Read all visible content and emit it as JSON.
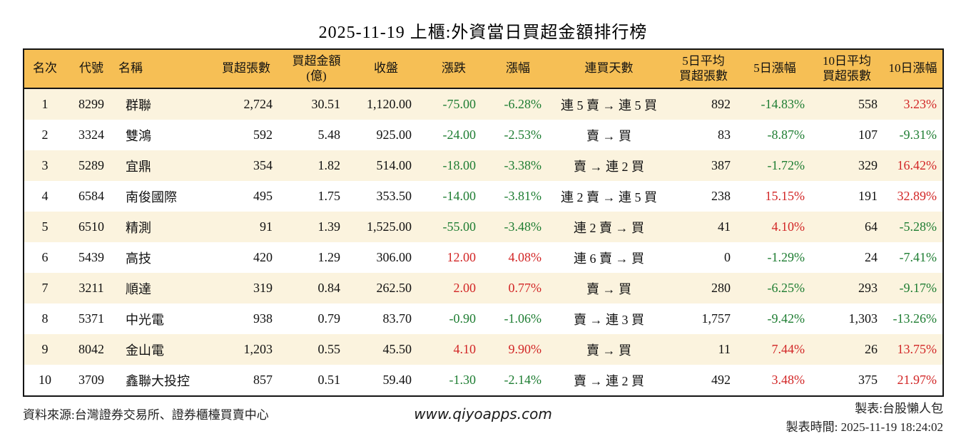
{
  "title": "2025-11-19 上櫃:外資當日買超金額排行榜",
  "colors": {
    "header_bg": "#f6bf55",
    "stripe_bg": "#fbf3de",
    "border": "#141414",
    "up_red": "#d22626",
    "down_green": "#1e7d32"
  },
  "chart_data": {
    "type": "table",
    "title": "2025-11-19 上櫃:外資當日買超金額排行榜",
    "columns": [
      "名次",
      "代號",
      "名稱",
      "買超張數",
      "買超金額\n(億)",
      "收盤",
      "漲跌",
      "漲幅",
      "連買天數",
      "5日平均\n買超張數",
      "5日漲幅",
      "10日平均\n買超張數",
      "10日漲幅"
    ],
    "column_keys": [
      "rank",
      "code",
      "name",
      "net_buy_volume",
      "net_buy_amount",
      "close",
      "change",
      "change_pct",
      "streak",
      "avg5_volume",
      "pct5",
      "avg10_volume",
      "pct10"
    ],
    "signed_columns": [
      "change",
      "change_pct",
      "pct5",
      "pct10"
    ],
    "rows": [
      {
        "rank": "1",
        "code": "8299",
        "name": "群聯",
        "net_buy_volume": "2,724",
        "net_buy_amount": "30.51",
        "close": "1,120.00",
        "change": "-75.00",
        "change_pct": "-6.28%",
        "streak": "連 5 賣 → 連 5 買",
        "avg5_volume": "892",
        "pct5": "-14.83%",
        "avg10_volume": "558",
        "pct10": "3.23%"
      },
      {
        "rank": "2",
        "code": "3324",
        "name": "雙鴻",
        "net_buy_volume": "592",
        "net_buy_amount": "5.48",
        "close": "925.00",
        "change": "-24.00",
        "change_pct": "-2.53%",
        "streak": "賣 → 買",
        "avg5_volume": "83",
        "pct5": "-8.87%",
        "avg10_volume": "107",
        "pct10": "-9.31%"
      },
      {
        "rank": "3",
        "code": "5289",
        "name": "宜鼎",
        "net_buy_volume": "354",
        "net_buy_amount": "1.82",
        "close": "514.00",
        "change": "-18.00",
        "change_pct": "-3.38%",
        "streak": "賣 → 連 2 買",
        "avg5_volume": "387",
        "pct5": "-1.72%",
        "avg10_volume": "329",
        "pct10": "16.42%"
      },
      {
        "rank": "4",
        "code": "6584",
        "name": "南俊國際",
        "net_buy_volume": "495",
        "net_buy_amount": "1.75",
        "close": "353.50",
        "change": "-14.00",
        "change_pct": "-3.81%",
        "streak": "連 2 賣 → 連 5 買",
        "avg5_volume": "238",
        "pct5": "15.15%",
        "avg10_volume": "191",
        "pct10": "32.89%"
      },
      {
        "rank": "5",
        "code": "6510",
        "name": "精測",
        "net_buy_volume": "91",
        "net_buy_amount": "1.39",
        "close": "1,525.00",
        "change": "-55.00",
        "change_pct": "-3.48%",
        "streak": "連 2 賣 → 買",
        "avg5_volume": "41",
        "pct5": "4.10%",
        "avg10_volume": "64",
        "pct10": "-5.28%"
      },
      {
        "rank": "6",
        "code": "5439",
        "name": "高技",
        "net_buy_volume": "420",
        "net_buy_amount": "1.29",
        "close": "306.00",
        "change": "12.00",
        "change_pct": "4.08%",
        "streak": "連 6 賣 → 買",
        "avg5_volume": "0",
        "pct5": "-1.29%",
        "avg10_volume": "24",
        "pct10": "-7.41%"
      },
      {
        "rank": "7",
        "code": "3211",
        "name": "順達",
        "net_buy_volume": "319",
        "net_buy_amount": "0.84",
        "close": "262.50",
        "change": "2.00",
        "change_pct": "0.77%",
        "streak": "賣 → 買",
        "avg5_volume": "280",
        "pct5": "-6.25%",
        "avg10_volume": "293",
        "pct10": "-9.17%"
      },
      {
        "rank": "8",
        "code": "5371",
        "name": "中光電",
        "net_buy_volume": "938",
        "net_buy_amount": "0.79",
        "close": "83.70",
        "change": "-0.90",
        "change_pct": "-1.06%",
        "streak": "賣 → 連 3 買",
        "avg5_volume": "1,757",
        "pct5": "-9.42%",
        "avg10_volume": "1,303",
        "pct10": "-13.26%"
      },
      {
        "rank": "9",
        "code": "8042",
        "name": "金山電",
        "net_buy_volume": "1,203",
        "net_buy_amount": "0.55",
        "close": "45.50",
        "change": "4.10",
        "change_pct": "9.90%",
        "streak": "賣 → 買",
        "avg5_volume": "11",
        "pct5": "7.44%",
        "avg10_volume": "26",
        "pct10": "13.75%"
      },
      {
        "rank": "10",
        "code": "3709",
        "name": "鑫聯大投控",
        "net_buy_volume": "857",
        "net_buy_amount": "0.51",
        "close": "59.40",
        "change": "-1.30",
        "change_pct": "-2.14%",
        "streak": "賣 → 連 2 買",
        "avg5_volume": "492",
        "pct5": "3.48%",
        "avg10_volume": "375",
        "pct10": "21.97%"
      }
    ]
  },
  "footer": {
    "source": "資料來源:台灣證券交易所、證券櫃檯買賣中心",
    "website": "www.qiyoapps.com",
    "maker": "製表:台股懶人包",
    "made_time": "製表時間: 2025-11-19 18:24:02"
  }
}
